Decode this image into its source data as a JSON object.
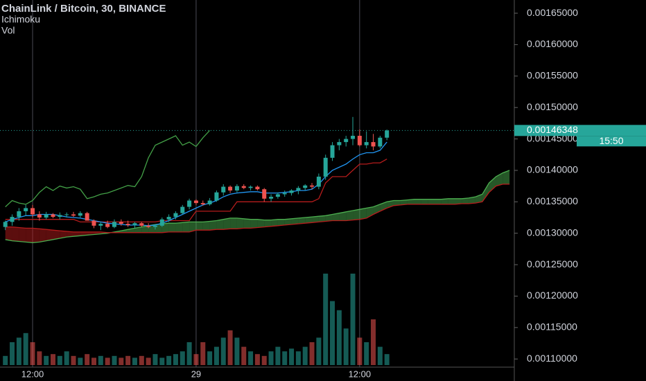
{
  "chart_data": {
    "type": "candlestick",
    "title": "ChainLink / Bitcoin, 30, BINANCE",
    "indicators": [
      "Ichimoku",
      "Vol"
    ],
    "countdown": "15:50",
    "categories": [
      null,
      null,
      null,
      null,
      "12:00",
      null,
      null,
      null,
      null,
      null,
      null,
      null,
      null,
      null,
      null,
      null,
      null,
      null,
      null,
      null,
      null,
      null,
      null,
      null,
      null,
      null,
      null,
      null,
      "29",
      null,
      null,
      null,
      null,
      null,
      null,
      null,
      null,
      null,
      null,
      null,
      null,
      null,
      null,
      null,
      null,
      null,
      null,
      null,
      null,
      null,
      null,
      null,
      "12:00",
      null,
      null,
      null,
      null,
      null,
      null,
      null,
      null,
      null,
      null,
      null,
      null,
      null,
      null,
      null,
      null,
      null,
      null,
      null,
      null,
      null,
      null
    ],
    "open": [
      0.00131,
      0.001318,
      0.001326,
      0.001335,
      0.00134,
      0.00133,
      0.001325,
      0.00133,
      0.001326,
      0.001329,
      0.00133,
      0.001328,
      0.001332,
      0.00132,
      0.001312,
      0.001315,
      0.00131,
      0.001318,
      0.001315,
      0.001313,
      0.001316,
      0.001312,
      0.00131,
      0.001312,
      0.001322,
      0.001326,
      0.001332,
      0.001342,
      0.001352,
      0.001348,
      0.001346,
      0.001352,
      0.001365,
      0.001374,
      0.001368,
      0.001375,
      0.001372,
      0.001374,
      0.00137,
      0.001355,
      0.001358,
      0.001362,
      0.001364,
      0.001368,
      0.001372,
      0.001376,
      0.001374,
      0.00139,
      0.00142,
      0.00144,
      0.001445,
      0.00145,
      0.001455,
      0.00144,
      0.001445,
      0.001438,
      0.001452,
      null,
      null,
      null,
      null,
      null,
      null,
      null,
      null,
      null,
      null,
      null,
      null,
      null,
      null,
      null,
      null,
      null,
      null
    ],
    "high": [
      0.00132,
      0.00133,
      0.00134,
      0.001345,
      0.001345,
      0.001335,
      0.001334,
      0.001332,
      0.001333,
      0.001333,
      0.001334,
      0.001335,
      0.001334,
      0.001322,
      0.001318,
      0.00132,
      0.001322,
      0.001322,
      0.00132,
      0.001318,
      0.001318,
      0.001316,
      0.001314,
      0.001325,
      0.00133,
      0.001335,
      0.001345,
      0.001355,
      0.001354,
      0.001352,
      0.001356,
      0.001368,
      0.001378,
      0.001376,
      0.001378,
      0.001378,
      0.001376,
      0.001376,
      0.001372,
      0.001362,
      0.001365,
      0.001368,
      0.00137,
      0.001375,
      0.001378,
      0.00138,
      0.001395,
      0.001425,
      0.001445,
      0.00145,
      0.001455,
      0.001485,
      0.001465,
      0.001462,
      0.001458,
      0.001455,
      0.001465,
      null,
      null,
      null,
      null,
      null,
      null,
      null,
      null,
      null,
      null,
      null,
      null,
      null,
      null,
      null,
      null,
      null,
      null
    ],
    "low": [
      0.001305,
      0.001312,
      0.00132,
      0.001328,
      0.001325,
      0.00132,
      0.001322,
      0.001324,
      0.001322,
      0.001325,
      0.001326,
      0.001325,
      0.001324,
      0.001308,
      0.001305,
      0.001308,
      0.001308,
      0.001312,
      0.00131,
      0.001308,
      0.00131,
      0.001308,
      0.001306,
      0.00131,
      0.001318,
      0.001322,
      0.00133,
      0.001338,
      0.001345,
      0.001344,
      0.001344,
      0.00135,
      0.00136,
      0.001364,
      0.001365,
      0.00137,
      0.001368,
      0.001368,
      0.00135,
      0.00135,
      0.001355,
      0.001358,
      0.00136,
      0.001362,
      0.001368,
      0.00137,
      0.00137,
      0.001385,
      0.001415,
      0.001432,
      0.001438,
      0.00144,
      0.001438,
      0.001435,
      0.001432,
      0.001435,
      0.001448,
      null,
      null,
      null,
      null,
      null,
      null,
      null,
      null,
      null,
      null,
      null,
      null,
      null,
      null,
      null,
      null,
      null,
      null
    ],
    "close": [
      0.001318,
      0.001326,
      0.001335,
      0.00134,
      0.00133,
      0.001325,
      0.00133,
      0.001326,
      0.001329,
      0.00133,
      0.001328,
      0.001332,
      0.00132,
      0.001312,
      0.001315,
      0.00131,
      0.001318,
      0.001315,
      0.001313,
      0.001316,
      0.001312,
      0.00131,
      0.001312,
      0.001322,
      0.001326,
      0.001332,
      0.001342,
      0.001352,
      0.001348,
      0.001346,
      0.001352,
      0.001365,
      0.001374,
      0.001368,
      0.001375,
      0.001372,
      0.001374,
      0.00137,
      0.001355,
      0.001358,
      0.001362,
      0.001364,
      0.001368,
      0.001372,
      0.001376,
      0.001374,
      0.00139,
      0.00142,
      0.00144,
      0.001445,
      0.00145,
      0.001455,
      0.00144,
      0.001445,
      0.001438,
      0.001452,
      0.00146348,
      null,
      null,
      null,
      null,
      null,
      null,
      null,
      null,
      null,
      null,
      null,
      null,
      null,
      null,
      null,
      null,
      null,
      null
    ],
    "volume": [
      10,
      25,
      30,
      35,
      25,
      15,
      10,
      12,
      10,
      15,
      10,
      8,
      12,
      8,
      10,
      8,
      10,
      8,
      10,
      8,
      10,
      8,
      12,
      8,
      10,
      12,
      15,
      25,
      12,
      25,
      15,
      20,
      30,
      38,
      30,
      20,
      15,
      12,
      10,
      15,
      20,
      15,
      18,
      15,
      20,
      25,
      30,
      100,
      70,
      60,
      40,
      100,
      30,
      25,
      50,
      20,
      12,
      null,
      null,
      null,
      null,
      null,
      null,
      null,
      null,
      null,
      null,
      null,
      null,
      null,
      null,
      null,
      null,
      null,
      null
    ],
    "tenkan": [
      0.001318,
      0.001322,
      0.001325,
      0.001328,
      0.001328,
      0.00133,
      0.00133,
      0.00133,
      0.001328,
      0.001326,
      0.001325,
      0.001324,
      0.001322,
      0.00132,
      0.001318,
      0.001316,
      0.001315,
      0.001314,
      0.001313,
      0.001313,
      0.001313,
      0.001312,
      0.001313,
      0.001316,
      0.00132,
      0.001325,
      0.00133,
      0.001335,
      0.00134,
      0.001345,
      0.001348,
      0.001352,
      0.001358,
      0.001362,
      0.001364,
      0.001365,
      0.001366,
      0.001366,
      0.001364,
      0.001364,
      0.001364,
      0.001365,
      0.001366,
      0.001368,
      0.001368,
      0.00137,
      0.001378,
      0.00139,
      0.0014,
      0.001405,
      0.00141,
      0.001418,
      0.001425,
      0.001428,
      0.001428,
      0.001432,
      0.001445,
      null,
      null,
      null,
      null,
      null,
      null,
      null,
      null,
      null,
      null,
      null,
      null,
      null,
      null,
      null,
      null,
      null,
      null
    ],
    "kijun": [
      0.001322,
      0.001322,
      0.001322,
      0.001322,
      0.001322,
      0.001322,
      0.001322,
      0.001322,
      0.001322,
      0.001322,
      0.001322,
      0.001318,
      0.001318,
      0.001318,
      0.001318,
      0.001318,
      0.001318,
      0.001318,
      0.001318,
      0.001318,
      0.001318,
      0.001318,
      0.001318,
      0.00132,
      0.00132,
      0.00132,
      0.00132,
      0.00132,
      0.001335,
      0.001335,
      0.001335,
      0.001335,
      0.001335,
      0.001335,
      0.00135,
      0.00135,
      0.00135,
      0.00135,
      0.00135,
      0.00135,
      0.00135,
      0.00135,
      0.00135,
      0.00135,
      0.00135,
      0.00135,
      0.001355,
      0.00138,
      0.00139,
      0.00139,
      0.00139,
      0.0014,
      0.00141,
      0.00141,
      0.001412,
      0.001412,
      0.001418,
      null,
      null,
      null,
      null,
      null,
      null,
      null,
      null,
      null,
      null,
      null,
      null,
      null,
      null,
      null,
      null,
      null,
      null
    ],
    "span_a": [
      0.00129,
      0.001288,
      0.001287,
      0.001286,
      0.001285,
      0.001286,
      0.001288,
      0.00129,
      0.001292,
      0.001294,
      0.001295,
      0.001296,
      0.001297,
      0.001298,
      0.001299,
      0.0013,
      0.001302,
      0.001304,
      0.001306,
      0.001308,
      0.00131,
      0.001312,
      0.001314,
      0.001315,
      0.001316,
      0.001316,
      0.001317,
      0.001318,
      0.001318,
      0.001318,
      0.001319,
      0.00132,
      0.001322,
      0.001324,
      0.001324,
      0.001323,
      0.001322,
      0.001322,
      0.001321,
      0.001321,
      0.001322,
      0.001322,
      0.001323,
      0.001324,
      0.001325,
      0.001326,
      0.001327,
      0.001328,
      0.00133,
      0.001332,
      0.001334,
      0.001336,
      0.001338,
      0.00134,
      0.001342,
      0.001346,
      0.00135,
      0.001352,
      0.001352,
      0.001353,
      0.001354,
      0.001354,
      0.001354,
      0.001354,
      0.001354,
      0.001355,
      0.001355,
      0.001355,
      0.001356,
      0.001358,
      0.001362,
      0.00138,
      0.00139,
      0.001396,
      0.0014
    ],
    "span_b": [
      0.00131,
      0.00131,
      0.001309,
      0.001308,
      0.001308,
      0.001307,
      0.001306,
      0.001305,
      0.001304,
      0.001303,
      0.001302,
      0.001302,
      0.001302,
      0.001302,
      0.001302,
      0.001301,
      0.001301,
      0.001301,
      0.001301,
      0.001301,
      0.001301,
      0.001301,
      0.001301,
      0.001301,
      0.001302,
      0.001302,
      0.001302,
      0.001302,
      0.001305,
      0.001305,
      0.001305,
      0.001306,
      0.001306,
      0.001307,
      0.001307,
      0.001308,
      0.001308,
      0.001309,
      0.00131,
      0.001311,
      0.001312,
      0.001313,
      0.001314,
      0.001315,
      0.001316,
      0.001317,
      0.001318,
      0.001319,
      0.00132,
      0.00132,
      0.00132,
      0.001321,
      0.001322,
      0.001324,
      0.00133,
      0.001335,
      0.00134,
      0.001344,
      0.001345,
      0.001346,
      0.001346,
      0.001346,
      0.001346,
      0.001346,
      0.001346,
      0.001346,
      0.001346,
      0.001347,
      0.001347,
      0.001348,
      0.00135,
      0.001365,
      0.001375,
      0.001378,
      0.001378
    ],
    "ylim": [
      0.001087,
      0.001671
    ],
    "yticks": [
      {
        "value": 0.0011,
        "label": "0.00110000"
      },
      {
        "value": 0.00115,
        "label": "0.00115000"
      },
      {
        "value": 0.0012,
        "label": "0.00120000"
      },
      {
        "value": 0.00125,
        "label": "0.00125000"
      },
      {
        "value": 0.0013,
        "label": "0.00130000"
      },
      {
        "value": 0.00135,
        "label": "0.00135000"
      },
      {
        "value": 0.0014,
        "label": "0.00140000"
      },
      {
        "value": 0.00145,
        "label": "0.00145000"
      },
      {
        "value": 0.0015,
        "label": "0.00150000"
      },
      {
        "value": 0.00155,
        "label": "0.00155000"
      },
      {
        "value": 0.0016,
        "label": "0.00160000"
      },
      {
        "value": 0.00165,
        "label": "0.00165000"
      }
    ],
    "up_color": "#26a69a",
    "down_color": "#ef5350",
    "tenkan_color": "#2196f3",
    "kijun_color": "#b71c1c",
    "lagging_color": "#43a047",
    "cloud_up_color": "#4caf50",
    "cloud_down_color": "#b71c1c"
  }
}
